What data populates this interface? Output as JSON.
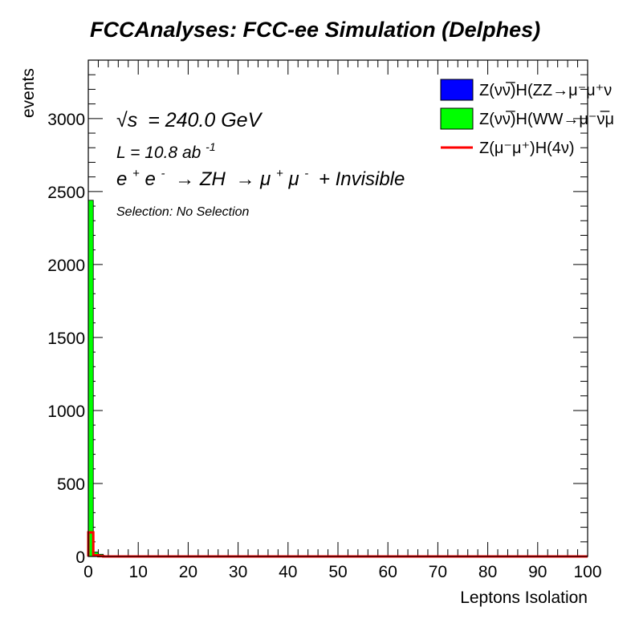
{
  "chart_data": {
    "type": "bar",
    "title": "FCCAnalyses: FCC-ee Simulation (Delphes)",
    "xlabel": "Leptons Isolation",
    "ylabel": "events",
    "xlim": [
      0,
      100
    ],
    "ylim": [
      0,
      3400
    ],
    "x_ticks": [
      "0",
      "10",
      "20",
      "30",
      "40",
      "50",
      "60",
      "70",
      "80",
      "90",
      "100"
    ],
    "y_ticks": [
      "0",
      "500",
      "1000",
      "1500",
      "2000",
      "2500",
      "3000"
    ],
    "bin_width": 1,
    "annotations": {
      "sqrt_s_symbol": "√s",
      "sqrt_s_value": "= 240.0 GeV",
      "lumi_base": "L = 10.8 ab",
      "lumi_exp": "-1",
      "process_prefix": "e",
      "process_plus": "+",
      "process_e2": "e",
      "process_minus": "-",
      "process_arrow1": "→ ZH",
      "process_arrow2": "→ μ",
      "process_mu_plus": "+",
      "process_mu2": "μ",
      "process_mu_minus": "-",
      "process_tail": "+ Invisible",
      "selection": "Selection: No Selection"
    },
    "series": [
      {
        "name": "Z(νν̅)H(ZZ→μ⁻μ⁺ν",
        "style": "filled",
        "color": "#0000ff",
        "bins": [
          {
            "x": 0,
            "value": 160
          }
        ]
      },
      {
        "name": "Z(νν̅)H(WW→μ⁻ν̅μ",
        "style": "filled",
        "color": "#00ff00",
        "bins": [
          {
            "x": 0,
            "value": 2440
          },
          {
            "x": 1,
            "value": 30
          },
          {
            "x": 2,
            "value": 15
          }
        ]
      },
      {
        "name": "Z(μ⁻μ⁺)H(4ν)",
        "style": "line",
        "color": "#ff0000",
        "bins": [
          {
            "x": 0,
            "value": 165
          },
          {
            "x": 1,
            "value": 8
          },
          {
            "x": 2,
            "value": 2
          }
        ]
      }
    ]
  }
}
